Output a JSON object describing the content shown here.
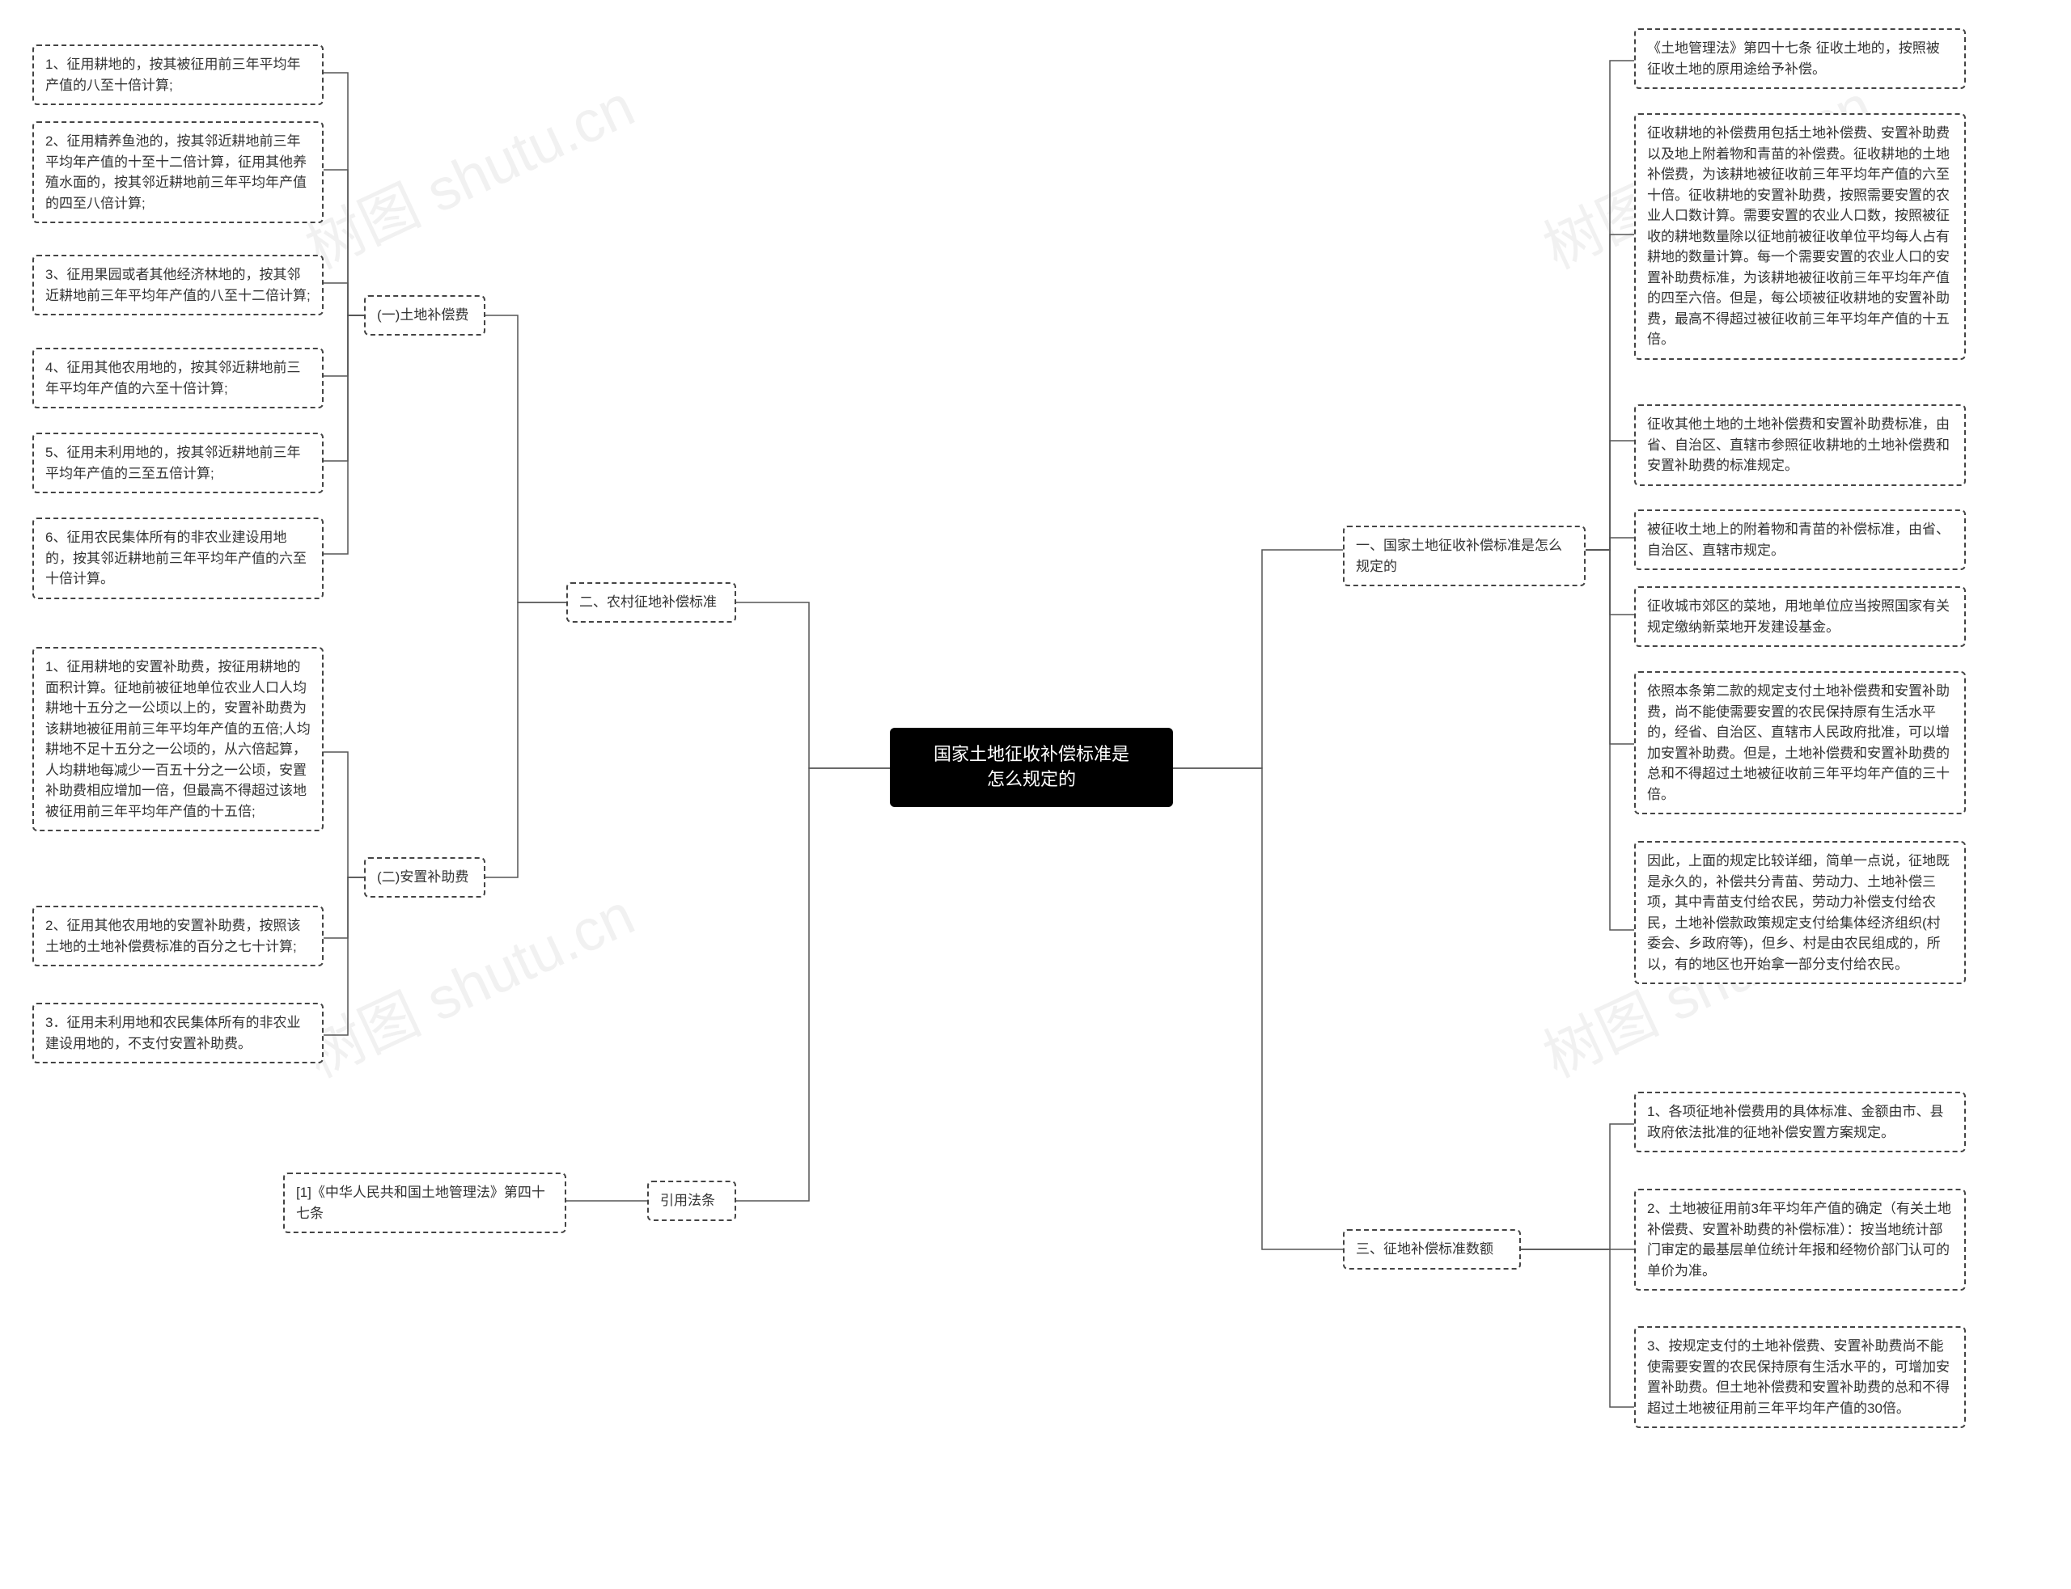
{
  "colors": {
    "bg": "#ffffff",
    "node_border": "#444444",
    "center_bg": "#000000",
    "center_fg": "#ffffff",
    "line": "#555555",
    "watermark": "#e6e6e6"
  },
  "center": {
    "text": "国家土地征收补偿标准是\n怎么规定的"
  },
  "right": {
    "section1": {
      "title": "一、国家土地征收补偿标准是怎么\n规定的",
      "items": [
        "《土地管理法》第四十七条 征收土地的，按照被征收土地的原用途给予补偿。",
        "征收耕地的补偿费用包括土地补偿费、安置补助费以及地上附着物和青苗的补偿费。征收耕地的土地补偿费，为该耕地被征收前三年平均年产值的六至十倍。征收耕地的安置补助费，按照需要安置的农业人口数计算。需要安置的农业人口数，按照被征收的耕地数量除以征地前被征收单位平均每人占有耕地的数量计算。每一个需要安置的农业人口的安置补助费标准，为该耕地被征收前三年平均年产值的四至六倍。但是，每公顷被征收耕地的安置补助费，最高不得超过被征收前三年平均年产值的十五倍。",
        "征收其他土地的土地补偿费和安置补助费标准，由省、自治区、直辖市参照征收耕地的土地补偿费和安置补助费的标准规定。",
        "被征收土地上的附着物和青苗的补偿标准，由省、自治区、直辖市规定。",
        "征收城市郊区的菜地，用地单位应当按照国家有关规定缴纳新菜地开发建设基金。",
        "依照本条第二款的规定支付土地补偿费和安置补助费，尚不能使需要安置的农民保持原有生活水平的，经省、自治区、直辖市人民政府批准，可以增加安置补助费。但是，土地补偿费和安置补助费的总和不得超过土地被征收前三年平均年产值的三十倍。",
        "因此，上面的规定比较详细，简单一点说，征地既是永久的，补偿共分青苗、劳动力、土地补偿三项，其中青苗支付给农民，劳动力补偿支付给农民，土地补偿款政策规定支付给集体经济组织(村委会、乡政府等)，但乡、村是由农民组成的，所以，有的地区也开始拿一部分支付给农民。"
      ]
    },
    "section3": {
      "title": "三、征地补偿标准数额",
      "items": [
        "1、各项征地补偿费用的具体标准、金额由市、县政府依法批准的征地补偿安置方案规定。",
        "2、土地被征用前3年平均年产值的确定（有关土地补偿费、安置补助费的补偿标准）：按当地统计部门审定的最基层单位统计年报和经物价部门认可的单价为准。",
        "3、按规定支付的土地补偿费、安置补助费尚不能使需要安置的农民保持原有生活水平的，可增加安置补助费。但土地补偿费和安置补助费的总和不得超过土地被征用前三年平均年产值的30倍。"
      ]
    }
  },
  "left": {
    "section2": {
      "title": "二、农村征地补偿标准",
      "subA": {
        "title": "(一)土地补偿费",
        "items": [
          "1、征用耕地的，按其被征用前三年平均年产值的八至十倍计算;",
          "2、征用精养鱼池的，按其邻近耕地前三年平均年产值的十至十二倍计算，征用其他养殖水面的，按其邻近耕地前三年平均年产值的四至八倍计算;",
          "3、征用果园或者其他经济林地的，按其邻近耕地前三年平均年产值的八至十二倍计算;",
          "4、征用其他农用地的，按其邻近耕地前三年平均年产值的六至十倍计算;",
          "5、征用未利用地的，按其邻近耕地前三年平均年产值的三至五倍计算;",
          "6、征用农民集体所有的非农业建设用地的，按其邻近耕地前三年平均年产值的六至十倍计算。"
        ]
      },
      "subB": {
        "title": "(二)安置补助费",
        "items": [
          "1、征用耕地的安置补助费，按征用耕地的面积计算。征地前被征地单位农业人口人均耕地十五分之一公顷以上的，安置补助费为该耕地被征用前三年平均年产值的五倍;人均耕地不足十五分之一公顷的，从六倍起算，人均耕地每减少一百五十分之一公顷，安置补助费相应增加一倍，但最高不得超过该地被征用前三年平均年产值的十五倍;",
          "2、征用其他农用地的安置补助费，按照该土地的土地补偿费标准的百分之七十计算;",
          "3．征用未利用地和农民集体所有的非农业建设用地的，不支付安置补助费。"
        ]
      }
    },
    "citations": {
      "title": "引用法条",
      "items": [
        "[1]《中华人民共和国土地管理法》第四十七条"
      ]
    }
  },
  "watermarks": [
    "树图 shutu.cn",
    "树图 shutu.cn",
    "树图 shutu.cn",
    "树图 shutu.cn"
  ]
}
